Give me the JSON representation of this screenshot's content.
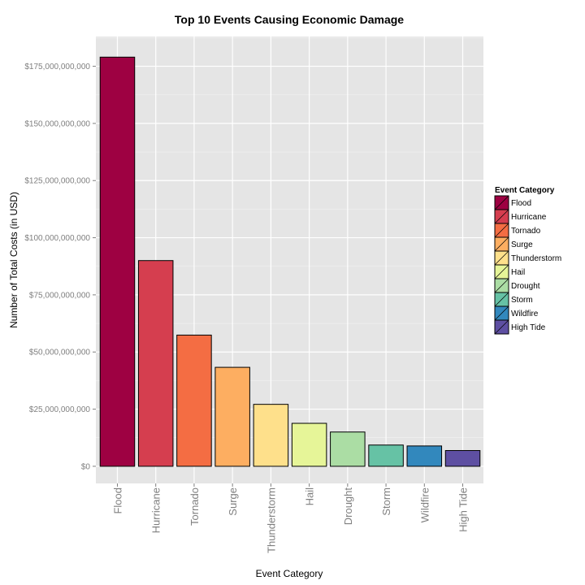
{
  "chart_data": {
    "type": "bar",
    "title": "Top 10 Events Causing Economic Damage",
    "xlabel": "Event Category",
    "ylabel": "Number of Total Costs (in USD)",
    "categories": [
      "Flood",
      "Hurricane",
      "Tornado",
      "Surge",
      "Thunderstorm",
      "Hail",
      "Drought",
      "Storm",
      "Wildfire",
      "High Tide"
    ],
    "values": [
      179000000000,
      90000000000,
      57400000000,
      43300000000,
      27100000000,
      18800000000,
      15000000000,
      9300000000,
      8900000000,
      6900000000
    ],
    "colors": [
      "#9e0142",
      "#d53e4f",
      "#f46d43",
      "#fdae61",
      "#fee08b",
      "#e6f598",
      "#abdda4",
      "#66c2a5",
      "#3288bd",
      "#5e4fa2"
    ],
    "ylim": [
      -7500000000,
      188000000000
    ],
    "yticks": [
      0,
      25000000000,
      50000000000,
      75000000000,
      100000000000,
      125000000000,
      150000000000,
      175000000000
    ],
    "ytick_labels": [
      "$0",
      "$25,000,000,000",
      "$50,000,000,000",
      "$75,000,000,000",
      "$100,000,000,000",
      "$125,000,000,000",
      "$150,000,000,000",
      "$175,000,000,000"
    ],
    "grid": true,
    "legend": {
      "title": "Event Category",
      "position": "right",
      "entries": [
        "Flood",
        "Hurricane",
        "Tornado",
        "Surge",
        "Thunderstorm",
        "Hail",
        "Drought",
        "Storm",
        "Wildfire",
        "High Tide"
      ]
    }
  }
}
